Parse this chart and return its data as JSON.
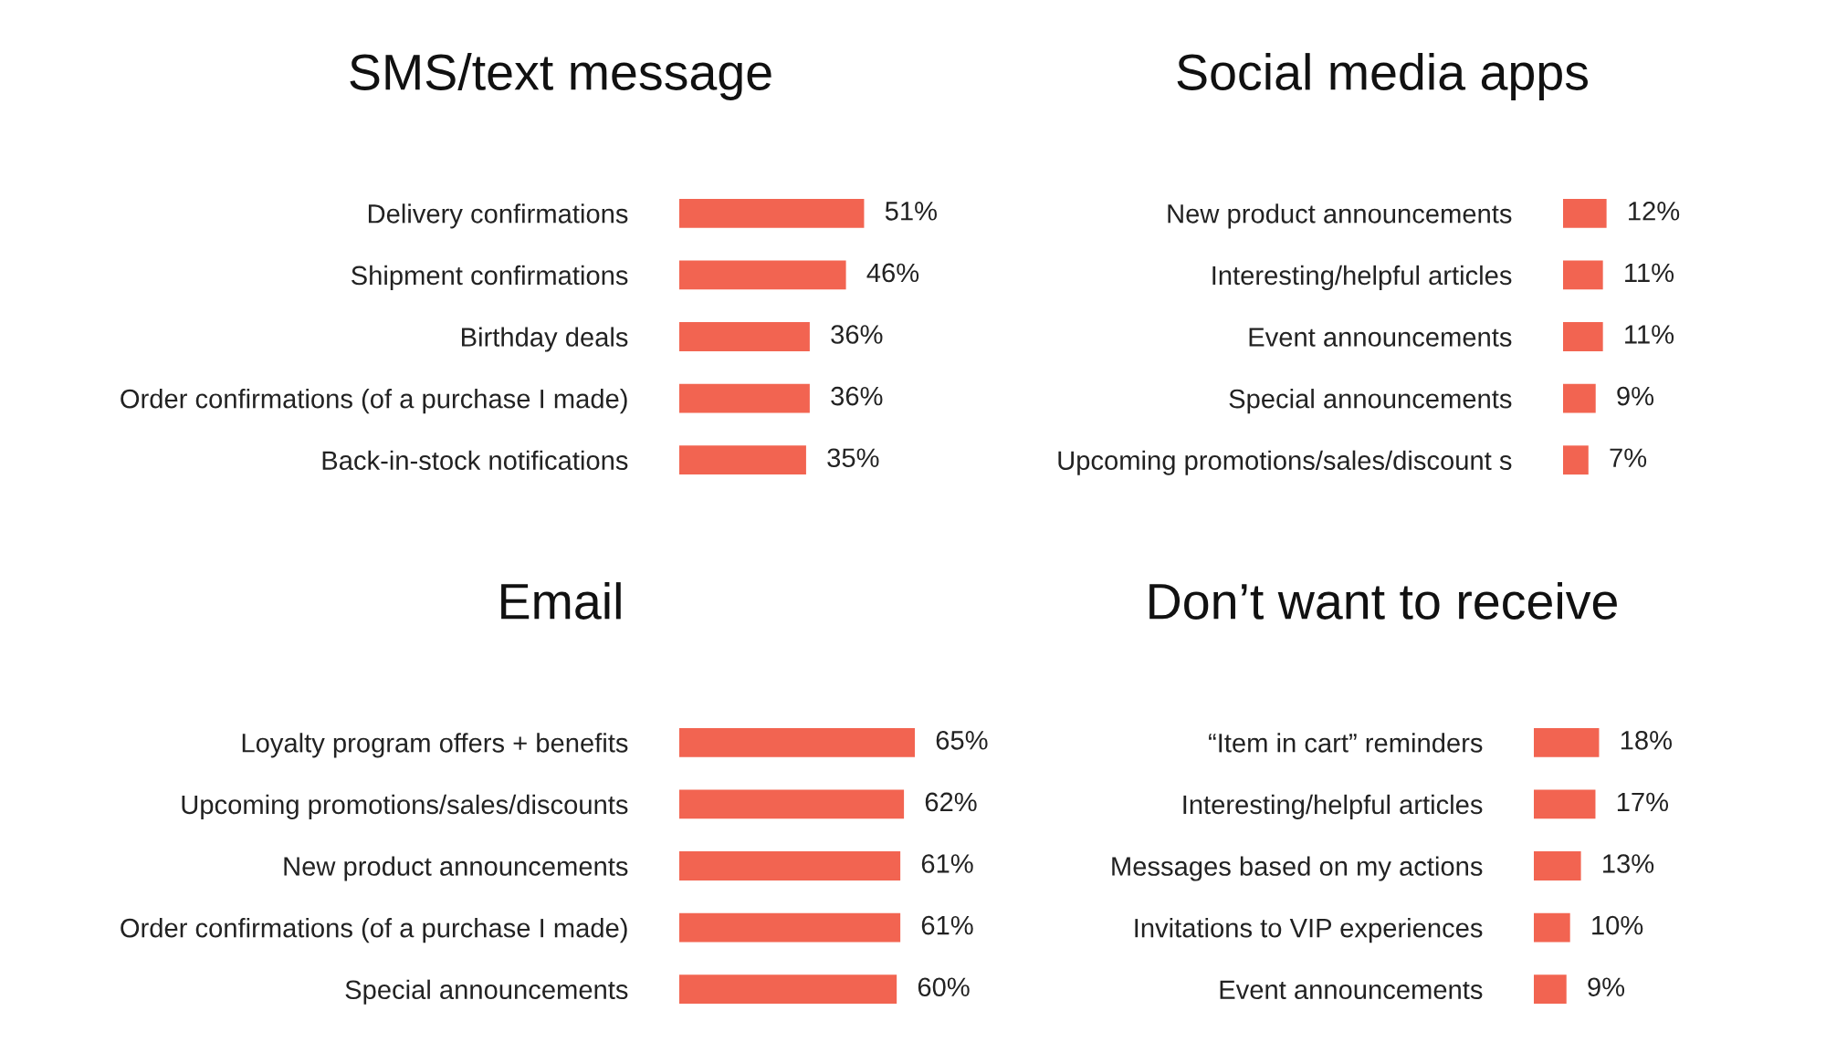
{
  "chart_data": [
    {
      "type": "bar",
      "orientation": "horizontal",
      "title": "SMS/text message",
      "categories": [
        "Delivery confirmations",
        "Shipment confirmations",
        "Birthday deals",
        "Order confirmations (of a purchase I made)",
        "Back-in-stock notifications"
      ],
      "values": [
        51,
        46,
        36,
        36,
        35
      ],
      "value_labels": [
        "51%",
        "46%",
        "36%",
        "36%",
        "35%"
      ],
      "color": "#f26451"
    },
    {
      "type": "bar",
      "orientation": "horizontal",
      "title": "Social media apps",
      "categories": [
        "New product announcements",
        "Interesting/helpful articles",
        "Event announcements",
        "Special announcements",
        "Upcoming promotions/sales/discount s"
      ],
      "values": [
        12,
        11,
        11,
        9,
        7
      ],
      "value_labels": [
        "12%",
        "11%",
        "11%",
        "9%",
        "7%"
      ],
      "color": "#f26451"
    },
    {
      "type": "bar",
      "orientation": "horizontal",
      "title": "Email",
      "categories": [
        "Loyalty program offers + benefits",
        "Upcoming promotions/sales/discounts",
        "New product announcements",
        "Order confirmations (of a purchase I made)",
        "Special announcements"
      ],
      "values": [
        65,
        62,
        61,
        61,
        60
      ],
      "value_labels": [
        "65%",
        "62%",
        "61%",
        "61%",
        "60%"
      ],
      "color": "#f26451"
    },
    {
      "type": "bar",
      "orientation": "horizontal",
      "title": "Don’t want to receive",
      "categories": [
        "“Item in cart” reminders",
        "Interesting/helpful articles",
        "Messages based on my actions",
        "Invitations to VIP experiences",
        "Event announcements"
      ],
      "values": [
        18,
        17,
        13,
        10,
        9
      ],
      "value_labels": [
        "18%",
        "17%",
        "13%",
        "10%",
        "9%"
      ],
      "color": "#f26451"
    }
  ]
}
